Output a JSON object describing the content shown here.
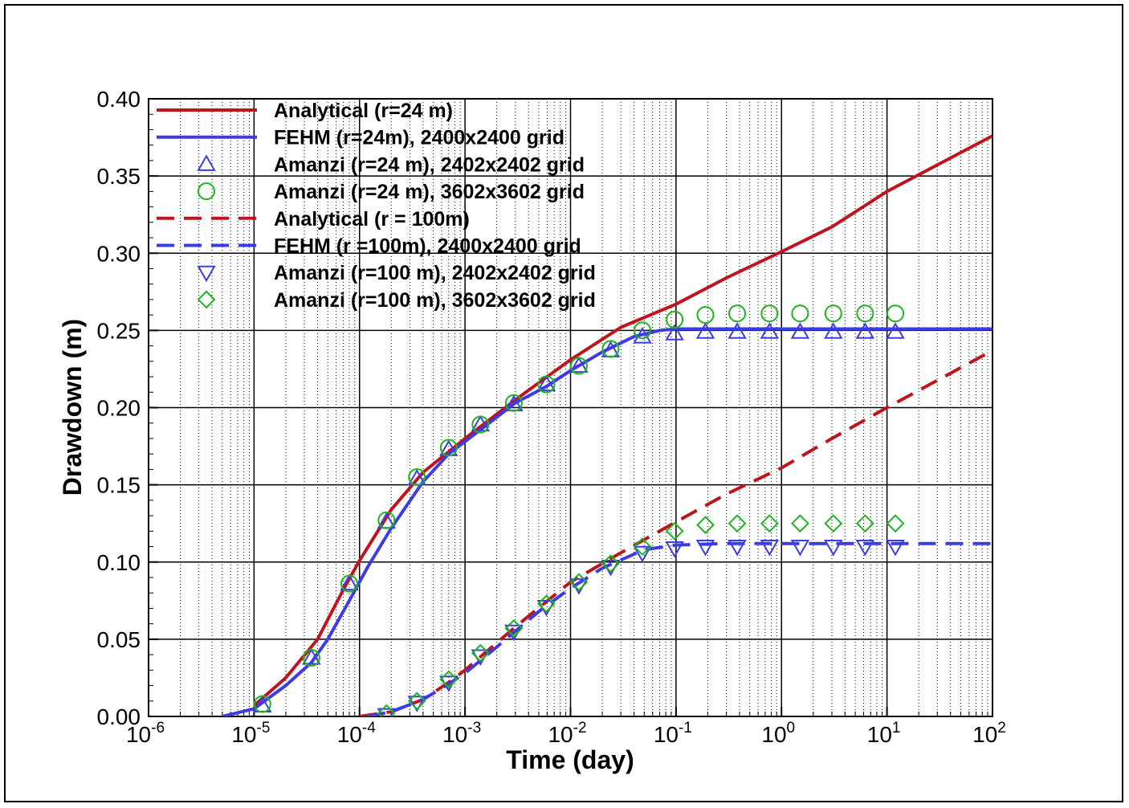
{
  "chart_data": {
    "type": "line",
    "xscale": "log",
    "xlabel": "Time (day)",
    "ylabel": "Drawdown (m)",
    "xlim": [
      1e-06,
      100
    ],
    "ylim": [
      0,
      0.4
    ],
    "grid": true,
    "legend_position": "top-left",
    "x_ticks": [
      {
        "value": 1e-06,
        "base": "10",
        "exp": "-6"
      },
      {
        "value": 1e-05,
        "base": "10",
        "exp": "-5"
      },
      {
        "value": 0.0001,
        "base": "10",
        "exp": "-4"
      },
      {
        "value": 0.001,
        "base": "10",
        "exp": "-3"
      },
      {
        "value": 0.01,
        "base": "10",
        "exp": "-2"
      },
      {
        "value": 0.1,
        "base": "10",
        "exp": "-1"
      },
      {
        "value": 1,
        "base": "10",
        "exp": "0"
      },
      {
        "value": 10,
        "base": "10",
        "exp": "1"
      },
      {
        "value": 100,
        "base": "10",
        "exp": "2"
      }
    ],
    "y_ticks": [
      "0.00",
      "0.05",
      "0.10",
      "0.15",
      "0.20",
      "0.25",
      "0.30",
      "0.35",
      "0.40"
    ],
    "series": [
      {
        "name": "Analytical (r=24 m)",
        "style": "solid",
        "color": "#c0141c",
        "marker": "none",
        "x": [
          1e-05,
          2e-05,
          4e-05,
          7e-05,
          0.0001,
          0.0002,
          0.0004,
          0.001,
          0.003,
          0.01,
          0.03,
          0.1,
          0.3,
          1,
          3,
          10,
          100
        ],
        "y": [
          0.007,
          0.025,
          0.05,
          0.082,
          0.101,
          0.134,
          0.158,
          0.18,
          0.205,
          0.231,
          0.252,
          0.267,
          0.284,
          0.301,
          0.317,
          0.34,
          0.376
        ]
      },
      {
        "name": "FEHM (r=24m), 2400x2400 grid",
        "style": "solid",
        "color": "#3c3ce6",
        "marker": "none",
        "x": [
          5e-06,
          1e-05,
          2e-05,
          3.5e-05,
          5e-05,
          8e-05,
          0.00012,
          0.0002,
          0.0004,
          0.0007,
          0.001,
          0.003,
          0.006,
          0.01,
          0.02,
          0.04,
          0.07,
          0.1,
          0.2,
          0.5,
          1,
          10,
          100
        ],
        "y": [
          0,
          0.005,
          0.02,
          0.035,
          0.05,
          0.075,
          0.097,
          0.122,
          0.152,
          0.17,
          0.178,
          0.203,
          0.214,
          0.224,
          0.236,
          0.246,
          0.25,
          0.251,
          0.251,
          0.251,
          0.251,
          0.251,
          0.251
        ]
      },
      {
        "name": "Amanzi (r=24 m), 2402x2402 grid",
        "style": "none",
        "color": "#3c3ce6",
        "marker": "triangle-up",
        "x": [
          1.2e-05,
          3.5e-05,
          8e-05,
          0.00018,
          0.00035,
          0.0007,
          0.0014,
          0.0029,
          0.0059,
          0.012,
          0.024,
          0.048,
          0.097,
          0.19,
          0.38,
          0.77,
          1.5,
          3.1,
          6.2,
          12
        ],
        "y": [
          0.007,
          0.038,
          0.086,
          0.126,
          0.154,
          0.173,
          0.189,
          0.202,
          0.215,
          0.227,
          0.237,
          0.246,
          0.248,
          0.249,
          0.249,
          0.249,
          0.249,
          0.249,
          0.249,
          0.249
        ]
      },
      {
        "name": "Amanzi (r=24 m), 3602x3602 grid",
        "style": "none",
        "color": "#1eb41e",
        "marker": "circle",
        "x": [
          1.2e-05,
          3.5e-05,
          8e-05,
          0.00018,
          0.00035,
          0.0007,
          0.0014,
          0.0029,
          0.0059,
          0.012,
          0.024,
          0.048,
          0.097,
          0.19,
          0.38,
          0.77,
          1.5,
          3.1,
          6.2,
          12
        ],
        "y": [
          0.008,
          0.038,
          0.086,
          0.127,
          0.155,
          0.174,
          0.189,
          0.203,
          0.215,
          0.227,
          0.238,
          0.25,
          0.257,
          0.26,
          0.261,
          0.261,
          0.261,
          0.261,
          0.261,
          0.261
        ]
      },
      {
        "name": "Analytical (r = 100m)",
        "style": "dashed",
        "color": "#c0141c",
        "marker": "none",
        "x": [
          0.0001,
          0.0002,
          0.0004,
          0.0007,
          0.001,
          0.003,
          0.01,
          0.03,
          0.1,
          0.3,
          1,
          3,
          10,
          100
        ],
        "y": [
          0,
          0.003,
          0.011,
          0.022,
          0.03,
          0.058,
          0.087,
          0.106,
          0.126,
          0.144,
          0.161,
          0.18,
          0.2,
          0.237
        ]
      },
      {
        "name": "FEHM (r =100m), 2400x2400 grid",
        "style": "dashed",
        "color": "#3c3ce6",
        "marker": "none",
        "x": [
          0.00012,
          0.0002,
          0.0004,
          0.0007,
          0.001,
          0.002,
          0.005,
          0.01,
          0.02,
          0.05,
          0.1,
          0.3,
          1,
          10,
          100
        ],
        "y": [
          0,
          0.003,
          0.011,
          0.021,
          0.028,
          0.045,
          0.068,
          0.083,
          0.096,
          0.108,
          0.111,
          0.112,
          0.112,
          0.112,
          0.112
        ]
      },
      {
        "name": "Amanzi (r=100 m), 2402x2402 grid",
        "style": "none",
        "color": "#3c3ce6",
        "marker": "triangle-down",
        "x": [
          0.00018,
          0.00035,
          0.0007,
          0.0014,
          0.0029,
          0.0059,
          0.012,
          0.024,
          0.048,
          0.097,
          0.19,
          0.38,
          0.77,
          1.5,
          3.1,
          6.2,
          12
        ],
        "y": [
          0.001,
          0.009,
          0.022,
          0.039,
          0.055,
          0.071,
          0.085,
          0.097,
          0.106,
          0.109,
          0.11,
          0.11,
          0.11,
          0.11,
          0.11,
          0.11,
          0.11
        ]
      },
      {
        "name": "Amanzi (r=100 m), 3602x3602 grid",
        "style": "none",
        "color": "#1eb41e",
        "marker": "diamond",
        "x": [
          0.00018,
          0.00035,
          0.0007,
          0.0014,
          0.0029,
          0.0059,
          0.012,
          0.024,
          0.048,
          0.097,
          0.19,
          0.38,
          0.77,
          1.5,
          3.1,
          6.2,
          12
        ],
        "y": [
          0.002,
          0.01,
          0.024,
          0.041,
          0.057,
          0.073,
          0.087,
          0.099,
          0.11,
          0.12,
          0.124,
          0.125,
          0.125,
          0.125,
          0.125,
          0.125,
          0.125
        ]
      }
    ]
  }
}
